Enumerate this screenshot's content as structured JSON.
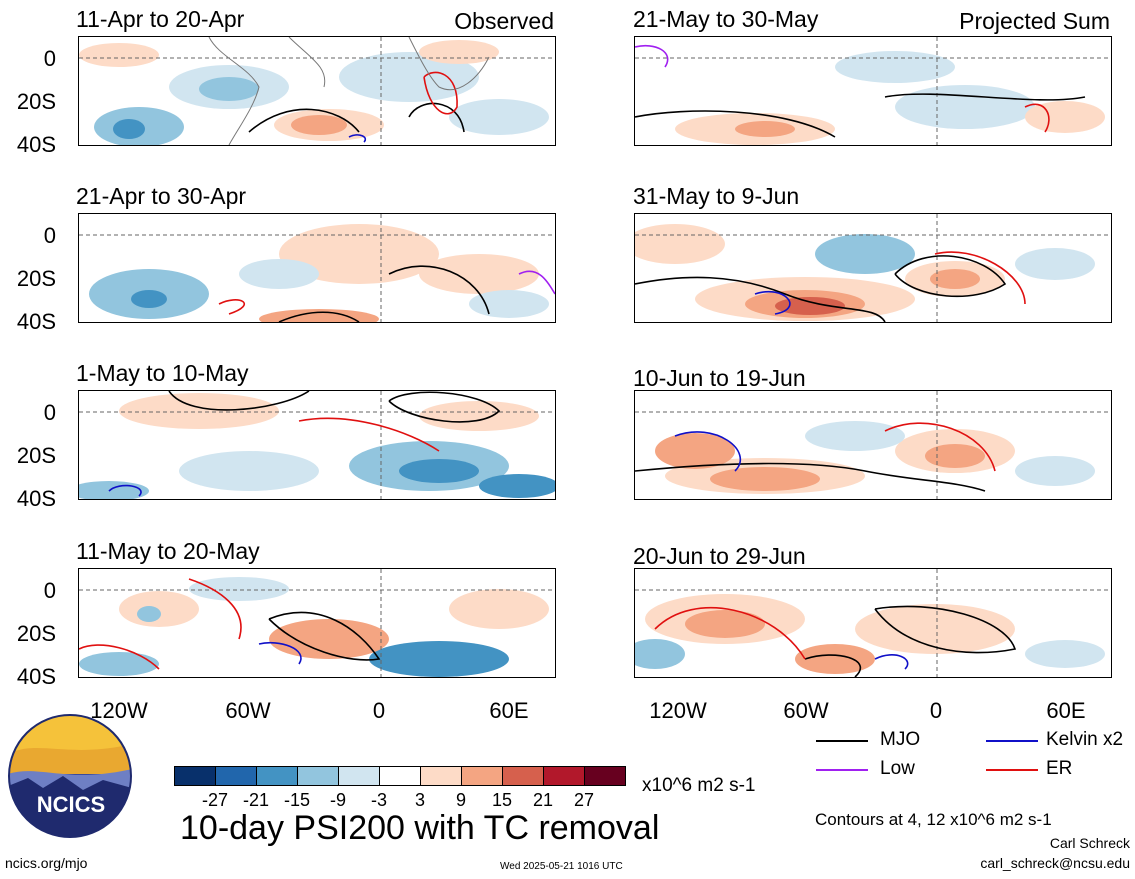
{
  "panels": [
    {
      "title": "11-Apr to 20-Apr",
      "label": "Observed"
    },
    {
      "title": "21-Apr to 30-Apr",
      "label": ""
    },
    {
      "title": "1-May to 10-May",
      "label": ""
    },
    {
      "title": "11-May to 20-May",
      "label": ""
    },
    {
      "title": "21-May to 30-May",
      "label": "Projected Sum"
    },
    {
      "title": "31-May to 9-Jun",
      "label": ""
    },
    {
      "title": "10-Jun to 19-Jun",
      "label": ""
    },
    {
      "title": "20-Jun to 29-Jun",
      "label": ""
    }
  ],
  "axes": {
    "y_ticks": [
      "0",
      "20S",
      "40S"
    ],
    "x_ticks": [
      "120W",
      "60W",
      "0",
      "60E"
    ]
  },
  "legend": [
    {
      "name": "MJO",
      "color": "#000000"
    },
    {
      "name": "Kelvin x2",
      "color": "#1010c8"
    },
    {
      "name": "Low",
      "color": "#a020f0"
    },
    {
      "name": "ER",
      "color": "#e01010"
    }
  ],
  "colorbar": {
    "colors": [
      "#08306b",
      "#2166ac",
      "#4393c3",
      "#92c5de",
      "#d1e5f0",
      "#ffffff",
      "#fddbc7",
      "#f4a582",
      "#d6604d",
      "#b2182b",
      "#67001f"
    ],
    "labels": [
      "-27",
      "-21",
      "-15",
      "-9",
      "-3",
      "3",
      "9",
      "15",
      "21",
      "27"
    ],
    "units": "x10^6 m2 s-1"
  },
  "main_title": "10-day PSI200 with TC removal",
  "contours_note": "Contours at 4, 12 x10^6 m2 s-1",
  "logo_text": "NCICS",
  "footer": {
    "left": "ncics.org/mjo",
    "center": "Wed 2025-05-21 1016 UTC",
    "author": "Carl Schreck",
    "email": "carl_schreck@ncsu.edu"
  }
}
